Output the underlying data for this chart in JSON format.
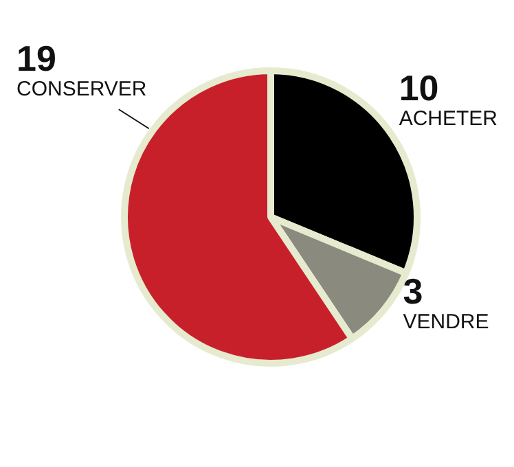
{
  "chart_data": {
    "type": "pie",
    "categories": [
      "ACHETER",
      "VENDRE",
      "CONSERVER"
    ],
    "values": [
      10,
      3,
      19
    ],
    "colors": [
      "#000000",
      "#8a8a7e",
      "#c8202a"
    ],
    "data_labels": true
  }
}
